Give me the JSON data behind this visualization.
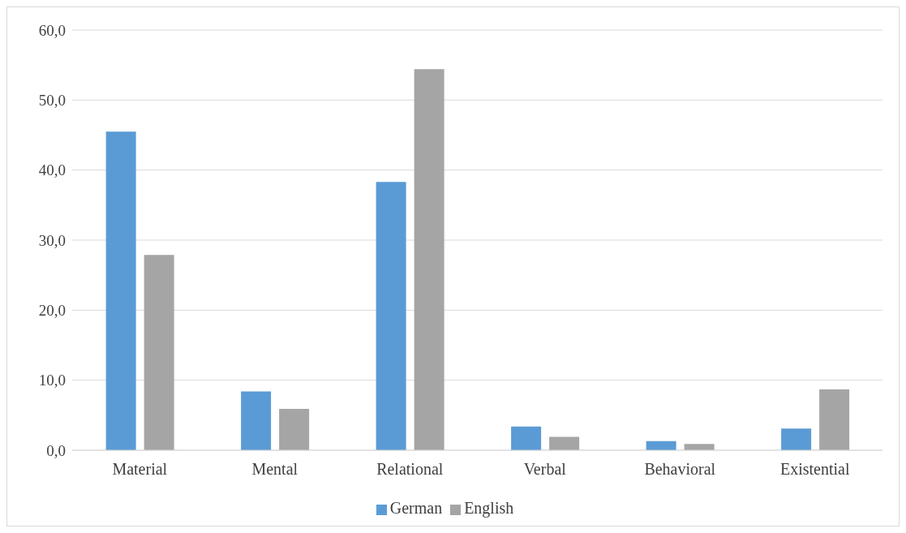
{
  "chart_data": {
    "type": "bar",
    "categories": [
      "Material",
      "Mental",
      "Relational",
      "Verbal",
      "Behavioral",
      "Existential"
    ],
    "series": [
      {
        "name": "German",
        "color": "#5b9bd5",
        "values": [
          45.5,
          8.4,
          38.3,
          3.4,
          1.3,
          3.1
        ]
      },
      {
        "name": "English",
        "color": "#a5a5a5",
        "values": [
          27.9,
          5.9,
          54.4,
          1.9,
          0.9,
          8.7
        ]
      }
    ],
    "ylim": [
      0,
      60
    ],
    "yticks": [
      {
        "value": 0,
        "label": "0,0"
      },
      {
        "value": 10,
        "label": "10,0"
      },
      {
        "value": 20,
        "label": "20,0"
      },
      {
        "value": 30,
        "label": "30,0"
      },
      {
        "value": 40,
        "label": "40,0"
      },
      {
        "value": 50,
        "label": "50,0"
      },
      {
        "value": 60,
        "label": "60,0"
      }
    ],
    "grid": "y",
    "legend": "bottom"
  }
}
